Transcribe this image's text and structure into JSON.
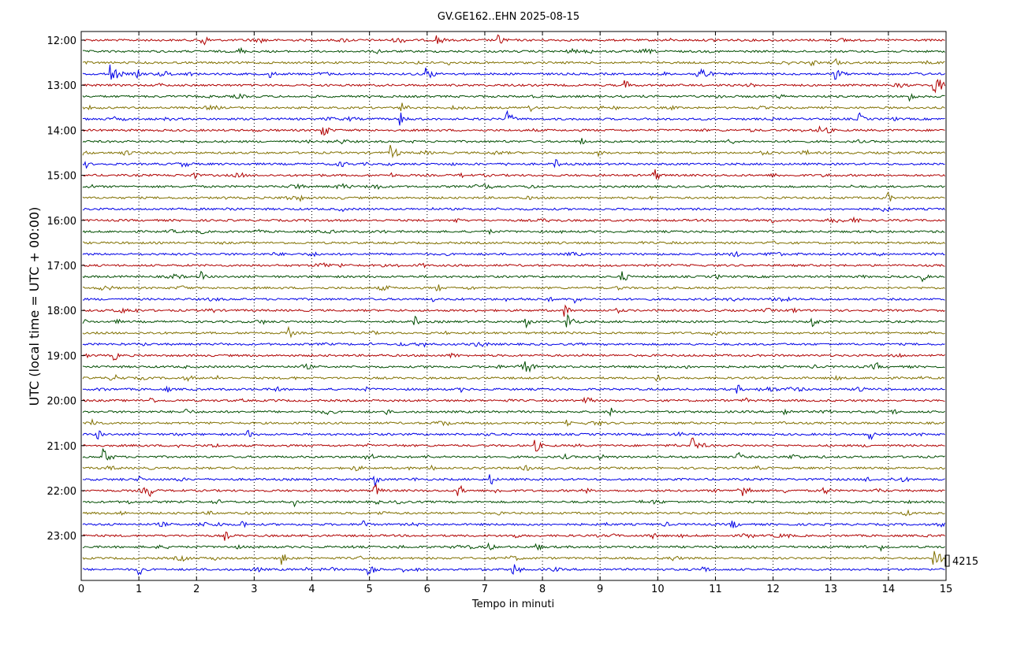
{
  "chart_data": {
    "type": "line",
    "title": "GV.GE162..EHN 2025-08-15",
    "xlabel": "Tempo in minuti",
    "ylabel": "UTC (local time = UTC + 00:00)",
    "xlim": [
      0,
      15
    ],
    "x_ticks": [
      "0",
      "1",
      "2",
      "3",
      "4",
      "5",
      "6",
      "7",
      "8",
      "9",
      "10",
      "11",
      "12",
      "13",
      "14",
      "15"
    ],
    "y_tick_labels": [
      "12:00",
      "13:00",
      "14:00",
      "15:00",
      "16:00",
      "17:00",
      "18:00",
      "19:00",
      "20:00",
      "21:00",
      "22:00",
      "23:00"
    ],
    "trace_start": "12:00",
    "trace_end": "23:45",
    "trace_interval_minutes": 15,
    "trace_colors": [
      "#b00000",
      "#004d00",
      "#807000",
      "#0000e6"
    ],
    "grid_x": "dotted",
    "scale_label": "4215",
    "events": [
      {
        "row": 0,
        "minute": 2.1,
        "amp": 10
      },
      {
        "row": 0,
        "minute": 6.2,
        "amp": 8
      },
      {
        "row": 0,
        "minute": 7.25,
        "amp": 9
      },
      {
        "row": 1,
        "minute": 2.75,
        "amp": 7
      },
      {
        "row": 2,
        "minute": 6.4,
        "amp": 4
      },
      {
        "row": 2,
        "minute": 12.7,
        "amp": 5
      },
      {
        "row": 2,
        "minute": 13.1,
        "amp": 6
      },
      {
        "row": 3,
        "minute": 0.5,
        "amp": 14
      },
      {
        "row": 3,
        "minute": 1.0,
        "amp": 5
      },
      {
        "row": 3,
        "minute": 3.3,
        "amp": 6
      },
      {
        "row": 3,
        "minute": 6.0,
        "amp": 10
      },
      {
        "row": 3,
        "minute": 10.7,
        "amp": 14
      },
      {
        "row": 3,
        "minute": 13.1,
        "amp": 9
      },
      {
        "row": 4,
        "minute": 9.45,
        "amp": 7
      },
      {
        "row": 4,
        "minute": 14.8,
        "amp": 14
      },
      {
        "row": 5,
        "minute": 14.4,
        "amp": 7
      },
      {
        "row": 6,
        "minute": 5.55,
        "amp": 9
      },
      {
        "row": 6,
        "minute": 7.8,
        "amp": 5
      },
      {
        "row": 7,
        "minute": 5.55,
        "amp": 9
      },
      {
        "row": 7,
        "minute": 7.4,
        "amp": 10
      },
      {
        "row": 7,
        "minute": 13.5,
        "amp": 8
      },
      {
        "row": 8,
        "minute": 4.2,
        "amp": 10
      },
      {
        "row": 8,
        "minute": 12.8,
        "amp": 7
      },
      {
        "row": 9,
        "minute": 8.7,
        "amp": 5
      },
      {
        "row": 9,
        "minute": 11.25,
        "amp": 7
      },
      {
        "row": 10,
        "minute": 5.4,
        "amp": 10
      },
      {
        "row": 10,
        "minute": 9.0,
        "amp": 6
      },
      {
        "row": 11,
        "minute": 0.1,
        "amp": 5
      },
      {
        "row": 11,
        "minute": 8.25,
        "amp": 6
      },
      {
        "row": 12,
        "minute": 1.9,
        "amp": 9
      },
      {
        "row": 12,
        "minute": 9.95,
        "amp": 9
      },
      {
        "row": 13,
        "minute": 3.8,
        "amp": 5
      },
      {
        "row": 13,
        "minute": 7.0,
        "amp": 5
      },
      {
        "row": 13,
        "minute": 7.8,
        "amp": 6
      },
      {
        "row": 14,
        "minute": 3.8,
        "amp": 5
      },
      {
        "row": 14,
        "minute": 14.0,
        "amp": 7
      },
      {
        "row": 16,
        "minute": 6.5,
        "amp": 5
      },
      {
        "row": 16,
        "minute": 12.0,
        "amp": 5
      },
      {
        "row": 17,
        "minute": 2.1,
        "amp": 4
      },
      {
        "row": 17,
        "minute": 8.3,
        "amp": 4
      },
      {
        "row": 20,
        "minute": 5.9,
        "amp": 6
      },
      {
        "row": 21,
        "minute": 2.1,
        "amp": 7
      },
      {
        "row": 21,
        "minute": 9.4,
        "amp": 8
      },
      {
        "row": 21,
        "minute": 14.6,
        "amp": 7
      },
      {
        "row": 22,
        "minute": 6.2,
        "amp": 5
      },
      {
        "row": 23,
        "minute": 8.6,
        "amp": 6
      },
      {
        "row": 24,
        "minute": 8.4,
        "amp": 8
      },
      {
        "row": 25,
        "minute": 5.8,
        "amp": 7
      },
      {
        "row": 25,
        "minute": 7.7,
        "amp": 9
      },
      {
        "row": 25,
        "minute": 8.45,
        "amp": 11
      },
      {
        "row": 25,
        "minute": 12.7,
        "amp": 8
      },
      {
        "row": 26,
        "minute": 3.6,
        "amp": 8
      },
      {
        "row": 28,
        "minute": 0.6,
        "amp": 6
      },
      {
        "row": 29,
        "minute": 7.7,
        "amp": 12
      },
      {
        "row": 29,
        "minute": 13.8,
        "amp": 6
      },
      {
        "row": 30,
        "minute": 2.4,
        "amp": 5
      },
      {
        "row": 30,
        "minute": 10.0,
        "amp": 6
      },
      {
        "row": 31,
        "minute": 1.5,
        "amp": 5
      },
      {
        "row": 31,
        "minute": 3.4,
        "amp": 6
      },
      {
        "row": 31,
        "minute": 11.4,
        "amp": 6
      },
      {
        "row": 31,
        "minute": 13.5,
        "amp": 7
      },
      {
        "row": 32,
        "minute": 1.2,
        "amp": 7
      },
      {
        "row": 32,
        "minute": 8.8,
        "amp": 7
      },
      {
        "row": 33,
        "minute": 1.8,
        "amp": 6
      },
      {
        "row": 33,
        "minute": 5.3,
        "amp": 5
      },
      {
        "row": 33,
        "minute": 9.2,
        "amp": 6
      },
      {
        "row": 33,
        "minute": 12.2,
        "amp": 8
      },
      {
        "row": 34,
        "minute": 0.2,
        "amp": 7
      },
      {
        "row": 34,
        "minute": 8.4,
        "amp": 7
      },
      {
        "row": 35,
        "minute": 0.3,
        "amp": 7
      },
      {
        "row": 35,
        "minute": 2.9,
        "amp": 6
      },
      {
        "row": 35,
        "minute": 13.7,
        "amp": 7
      },
      {
        "row": 36,
        "minute": 1.7,
        "amp": 5
      },
      {
        "row": 36,
        "minute": 7.9,
        "amp": 8
      },
      {
        "row": 36,
        "minute": 10.6,
        "amp": 11
      },
      {
        "row": 37,
        "minute": 0.4,
        "amp": 11
      },
      {
        "row": 37,
        "minute": 9.0,
        "amp": 6
      },
      {
        "row": 37,
        "minute": 11.4,
        "amp": 7
      },
      {
        "row": 38,
        "minute": 6.1,
        "amp": 5
      },
      {
        "row": 39,
        "minute": 1.0,
        "amp": 6
      },
      {
        "row": 39,
        "minute": 5.1,
        "amp": 8
      },
      {
        "row": 39,
        "minute": 7.1,
        "amp": 8
      },
      {
        "row": 40,
        "minute": 1.2,
        "amp": 8
      },
      {
        "row": 40,
        "minute": 5.1,
        "amp": 9
      },
      {
        "row": 40,
        "minute": 6.55,
        "amp": 9
      },
      {
        "row": 40,
        "minute": 11.5,
        "amp": 10
      },
      {
        "row": 40,
        "minute": 12.9,
        "amp": 7
      },
      {
        "row": 41,
        "minute": 3.7,
        "amp": 6
      },
      {
        "row": 41,
        "minute": 5.6,
        "amp": 6
      },
      {
        "row": 43,
        "minute": 2.8,
        "amp": 7
      },
      {
        "row": 43,
        "minute": 4.9,
        "amp": 8
      },
      {
        "row": 43,
        "minute": 11.3,
        "amp": 8
      },
      {
        "row": 44,
        "minute": 2.5,
        "amp": 7
      },
      {
        "row": 44,
        "minute": 7.5,
        "amp": 7
      },
      {
        "row": 44,
        "minute": 9.9,
        "amp": 7
      },
      {
        "row": 45,
        "minute": 7.1,
        "amp": 6
      },
      {
        "row": 45,
        "minute": 7.9,
        "amp": 7
      },
      {
        "row": 45,
        "minute": 13.9,
        "amp": 6
      },
      {
        "row": 46,
        "minute": 3.5,
        "amp": 9
      },
      {
        "row": 46,
        "minute": 14.8,
        "amp": 12
      },
      {
        "row": 47,
        "minute": 1.0,
        "amp": 9
      },
      {
        "row": 47,
        "minute": 5.0,
        "amp": 10
      },
      {
        "row": 47,
        "minute": 7.5,
        "amp": 10
      },
      {
        "row": 47,
        "minute": 10.75,
        "amp": 9
      }
    ]
  }
}
